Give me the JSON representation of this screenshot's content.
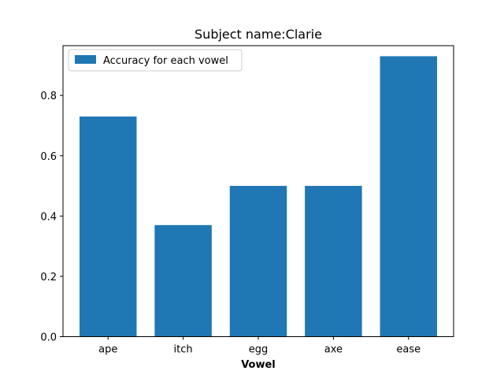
{
  "chart_data": {
    "type": "bar",
    "title": "Subject name:Clarie",
    "xlabel": "Vowel",
    "ylabel": "",
    "categories": [
      "ape",
      "itch",
      "egg",
      "axe",
      "ease"
    ],
    "series": [
      {
        "name": "Accuracy for each vowel",
        "values": [
          0.73,
          0.37,
          0.5,
          0.5,
          0.93
        ],
        "color": "#1f77b4"
      }
    ],
    "yticks": [
      "0.0",
      "0.2",
      "0.4",
      "0.6",
      "0.8"
    ],
    "ylim": [
      0,
      0.965
    ],
    "grid": false,
    "legend_position": "top-left"
  }
}
